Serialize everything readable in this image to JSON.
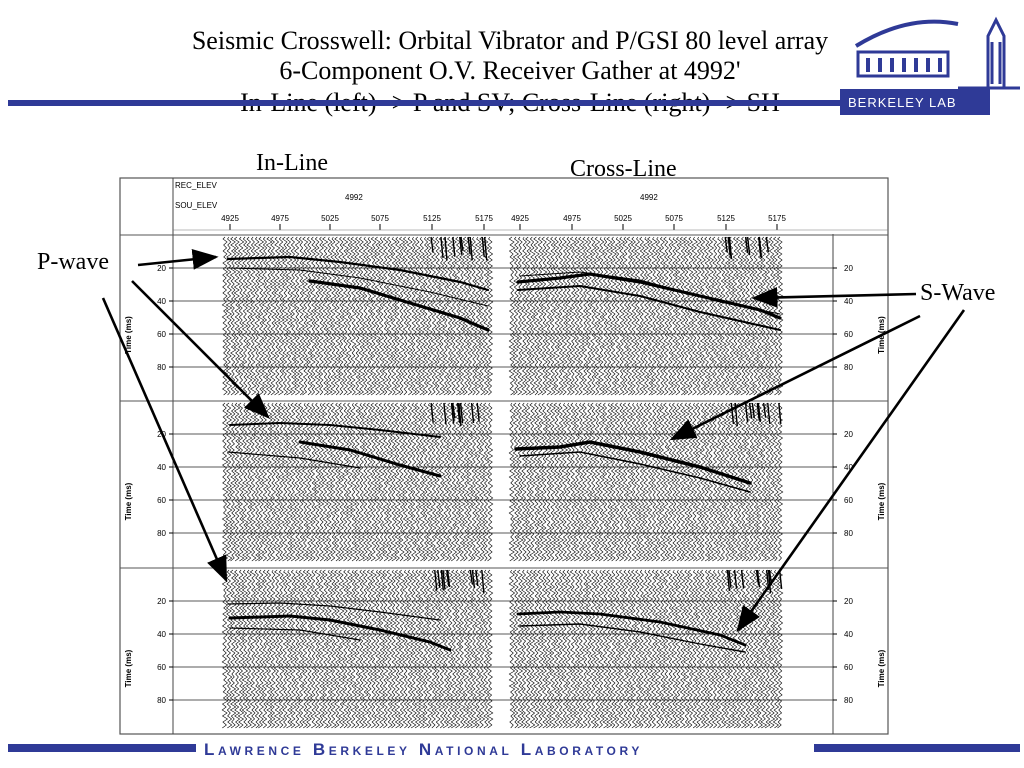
{
  "title": {
    "line1": "Seismic Crosswell: Orbital Vibrator and P/GSI 80 level array",
    "line2": "6-Component  O.V.  Receiver Gather at 4992'",
    "line3": "In-Line (left) -> P and SV; Cross-Line (right) -> SH"
  },
  "columns": {
    "left": "In-Line",
    "right": "Cross-Line"
  },
  "annotations": {
    "p_wave": "P-wave",
    "s_wave": "S-Wave"
  },
  "logo": {
    "text": "BERKELEY LAB"
  },
  "footer": {
    "text": "Lawrence Berkeley National Laboratory"
  },
  "colors": {
    "brand_blue": "#2f3a97",
    "trace": "#000000",
    "grid": "#222222"
  },
  "chart_data": {
    "type": "seismic-gather",
    "header": {
      "rec_elev_label": "REC_ELEV",
      "sou_elev_label": "SOU_ELEV",
      "rec_elev": "4992",
      "rec_elev_right": "4992"
    },
    "x_ticks": [
      "4925",
      "4975",
      "5025",
      "5075",
      "5125",
      "5175"
    ],
    "y_ticks": [
      "20",
      "40",
      "60",
      "80"
    ],
    "ylabel": "Time (ms)",
    "ylim": [
      0,
      100
    ],
    "panels": [
      {
        "row": 1,
        "side": "in-line"
      },
      {
        "row": 1,
        "side": "cross-line"
      },
      {
        "row": 2,
        "side": "in-line"
      },
      {
        "row": 2,
        "side": "cross-line"
      },
      {
        "row": 3,
        "side": "in-line"
      },
      {
        "row": 3,
        "side": "cross-line"
      }
    ]
  }
}
